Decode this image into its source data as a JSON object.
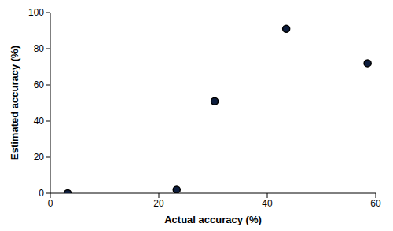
{
  "chart_data": {
    "type": "scatter",
    "x_label": "Actual accuracy (%)",
    "y_label": "Estimated accuracy (%)",
    "x": [
      3.2,
      23.3,
      30.3,
      43.5,
      58.5
    ],
    "values": [
      0,
      2,
      51,
      91,
      72
    ],
    "xlim": [
      0,
      60
    ],
    "xticks": [
      0,
      20,
      40,
      60
    ],
    "ylim": [
      0,
      100
    ],
    "yticks": [
      0,
      20,
      40,
      60,
      80,
      100
    ],
    "color": "#0d1d3d",
    "marker": "circle",
    "grid": false
  }
}
